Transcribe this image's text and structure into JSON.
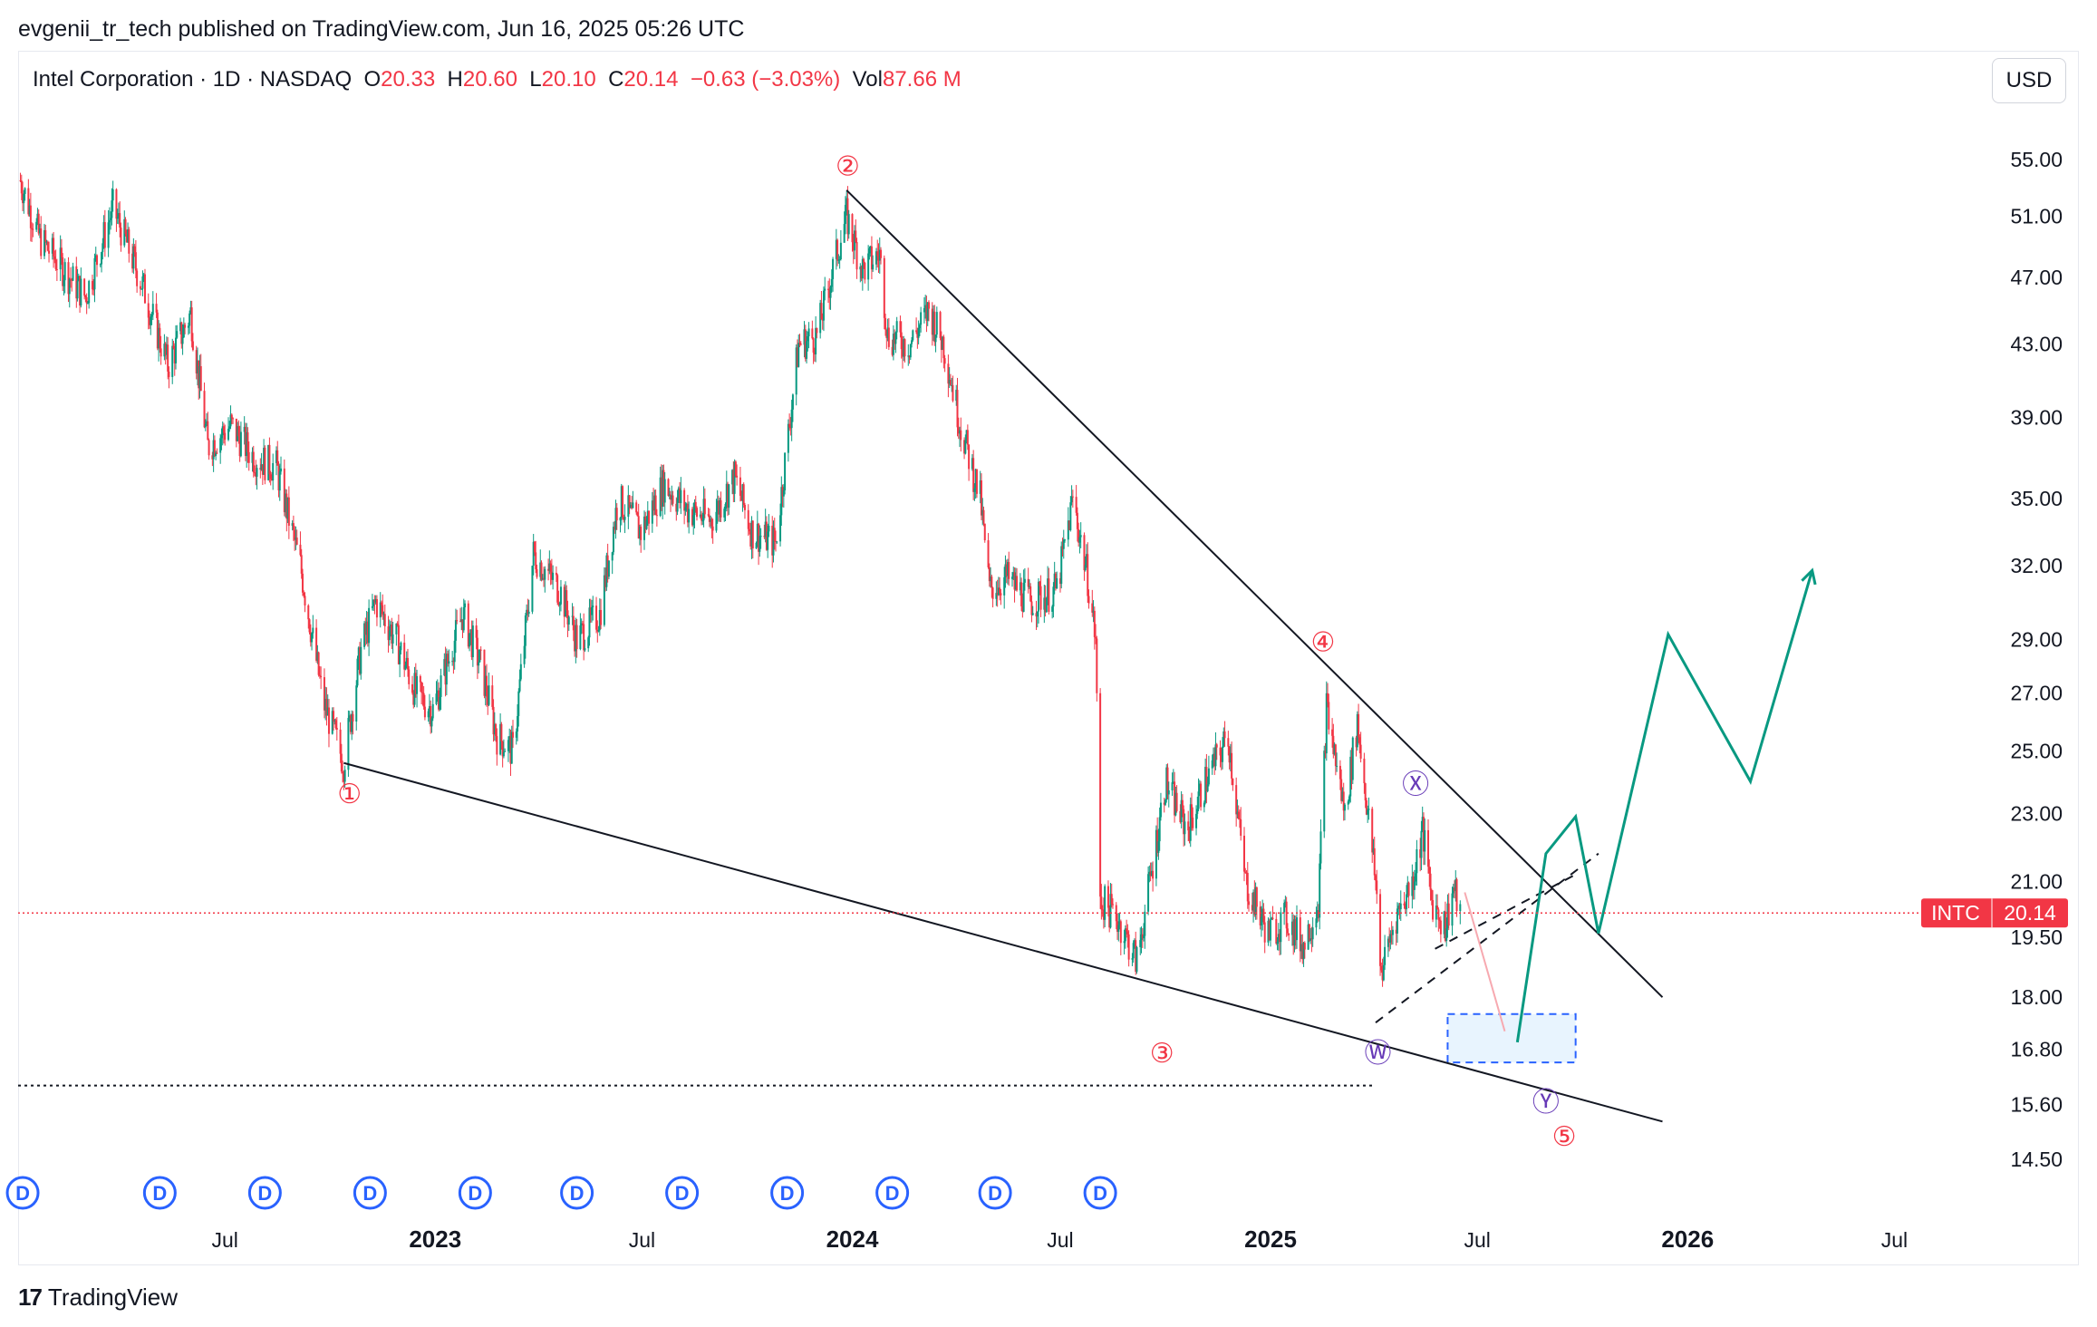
{
  "header": {
    "published_line": "evgenii_tr_tech published on TradingView.com, Jun 16, 2025 05:26 UTC"
  },
  "legend": {
    "symbol": "Intel Corporation · 1D · NASDAQ",
    "o_label": "O",
    "o_value": "20.33",
    "h_label": "H",
    "h_value": "20.60",
    "l_label": "L",
    "l_value": "20.10",
    "c_label": "C",
    "c_value": "20.14",
    "change": "−0.63 (−3.03%)",
    "vol_label": "Vol",
    "vol_value": "87.66 M"
  },
  "currency_button": "USD",
  "footer": {
    "brand": "TradingView"
  },
  "colors": {
    "up": "#089981",
    "down": "#f23645",
    "wave_label": "#f23645",
    "subwave_label": "#673ab7",
    "projection": "#089981",
    "dividend": "#2962ff",
    "price_line": "#f23645"
  },
  "chart_data": {
    "type": "candlestick",
    "symbol": "INTC",
    "interval": "1D",
    "y_scale": "log",
    "ylim": [
      13.8,
      58.5
    ],
    "xlim": [
      "2022-01-01",
      "2026-09-10"
    ],
    "y_ticks": [
      "55.00",
      "51.00",
      "47.00",
      "43.00",
      "39.00",
      "35.00",
      "32.00",
      "29.00",
      "27.00",
      "25.00",
      "23.00",
      "21.00",
      "19.50",
      "18.00",
      "16.80",
      "15.60",
      "14.50"
    ],
    "x_ticks": [
      {
        "date": "2022-07-01",
        "label": "Jul",
        "bold": false
      },
      {
        "date": "2023-01-01",
        "label": "2023",
        "bold": true
      },
      {
        "date": "2023-07-01",
        "label": "Jul",
        "bold": false
      },
      {
        "date": "2024-01-01",
        "label": "2024",
        "bold": true
      },
      {
        "date": "2024-07-01",
        "label": "Jul",
        "bold": false
      },
      {
        "date": "2025-01-01",
        "label": "2025",
        "bold": true
      },
      {
        "date": "2025-07-01",
        "label": "Jul",
        "bold": false
      },
      {
        "date": "2026-01-01",
        "label": "2026",
        "bold": true
      },
      {
        "date": "2026-07-01",
        "label": "Jul",
        "bold": false
      }
    ],
    "price_path": [
      [
        "2022-01-03",
        53.5
      ],
      [
        "2022-01-20",
        49.5
      ],
      [
        "2022-02-10",
        47.5
      ],
      [
        "2022-03-01",
        45.8
      ],
      [
        "2022-03-25",
        51.6
      ],
      [
        "2022-04-20",
        46.5
      ],
      [
        "2022-05-12",
        41.8
      ],
      [
        "2022-06-01",
        44.8
      ],
      [
        "2022-06-16",
        37.5
      ],
      [
        "2022-07-06",
        38.6
      ],
      [
        "2022-07-26",
        37.0
      ],
      [
        "2022-08-15",
        36.5
      ],
      [
        "2022-09-05",
        32.0
      ],
      [
        "2022-09-25",
        26.7
      ],
      [
        "2022-10-13",
        24.6
      ],
      [
        "2022-10-28",
        28.6
      ],
      [
        "2022-11-10",
        30.5
      ],
      [
        "2022-11-28",
        29.0
      ],
      [
        "2022-12-15",
        27.0
      ],
      [
        "2022-12-30",
        26.4
      ],
      [
        "2023-01-25",
        30.0
      ],
      [
        "2023-02-10",
        28.0
      ],
      [
        "2023-02-24",
        25.5
      ],
      [
        "2023-03-10",
        25.0
      ],
      [
        "2023-03-28",
        32.5
      ],
      [
        "2023-04-20",
        31.0
      ],
      [
        "2023-05-05",
        29.0
      ],
      [
        "2023-05-25",
        30.0
      ],
      [
        "2023-06-10",
        35.0
      ],
      [
        "2023-06-30",
        33.5
      ],
      [
        "2023-07-20",
        35.7
      ],
      [
        "2023-08-10",
        34.5
      ],
      [
        "2023-08-30",
        34.0
      ],
      [
        "2023-09-20",
        36.0
      ],
      [
        "2023-10-05",
        33.5
      ],
      [
        "2023-10-26",
        33.0
      ],
      [
        "2023-11-15",
        43.0
      ],
      [
        "2023-12-01",
        43.5
      ],
      [
        "2023-12-15",
        47.5
      ],
      [
        "2023-12-27",
        51.0
      ],
      [
        "2024-01-10",
        47.5
      ],
      [
        "2024-01-25",
        48.5
      ],
      [
        "2024-02-01",
        43.5
      ],
      [
        "2024-02-20",
        43.0
      ],
      [
        "2024-03-08",
        45.0
      ],
      [
        "2024-03-21",
        43.0
      ],
      [
        "2024-04-05",
        38.5
      ],
      [
        "2024-04-22",
        35.0
      ],
      [
        "2024-04-30",
        31.0
      ],
      [
        "2024-05-15",
        31.5
      ],
      [
        "2024-06-05",
        30.5
      ],
      [
        "2024-06-28",
        31.0
      ],
      [
        "2024-07-12",
        35.0
      ],
      [
        "2024-07-25",
        31.5
      ],
      [
        "2024-08-01",
        29.0
      ],
      [
        "2024-08-05",
        20.5
      ],
      [
        "2024-08-20",
        20.0
      ],
      [
        "2024-09-06",
        18.9
      ],
      [
        "2024-09-20",
        21.5
      ],
      [
        "2024-10-01",
        24.0
      ],
      [
        "2024-10-20",
        22.5
      ],
      [
        "2024-11-05",
        24.0
      ],
      [
        "2024-11-25",
        25.5
      ],
      [
        "2024-12-10",
        21.0
      ],
      [
        "2024-12-30",
        19.6
      ],
      [
        "2025-01-15",
        20.0
      ],
      [
        "2025-01-30",
        19.3
      ],
      [
        "2025-02-12",
        20.5
      ],
      [
        "2025-02-19",
        26.5
      ],
      [
        "2025-03-07",
        23.0
      ],
      [
        "2025-03-18",
        26.0
      ],
      [
        "2025-04-03",
        21.0
      ],
      [
        "2025-04-08",
        18.6
      ],
      [
        "2025-04-20",
        20.0
      ],
      [
        "2025-05-05",
        21.0
      ],
      [
        "2025-05-14",
        22.5
      ],
      [
        "2025-05-22",
        20.5
      ],
      [
        "2025-06-03",
        19.8
      ],
      [
        "2025-06-10",
        20.8
      ],
      [
        "2025-06-16",
        20.14
      ]
    ],
    "last_price": {
      "symbol": "INTC",
      "value": 20.14
    },
    "trendlines": [
      {
        "style": "solid",
        "from": [
          "2022-10-13",
          24.6
        ],
        "to": [
          "2025-12-10",
          15.25
        ]
      },
      {
        "style": "solid",
        "from": [
          "2023-12-27",
          52.8
        ],
        "to": [
          "2025-12-10",
          18.0
        ]
      },
      {
        "style": "dashed",
        "from": [
          "2025-04-03",
          17.4
        ],
        "to": [
          "2025-10-15",
          21.8
        ]
      },
      {
        "style": "dashed",
        "from": [
          "2025-05-25",
          19.2
        ],
        "to": [
          "2025-09-25",
          21.2
        ]
      }
    ],
    "support_level": 16.0,
    "target_box": {
      "from": [
        "2025-06-05",
        17.6
      ],
      "to": [
        "2025-09-25",
        16.5
      ]
    },
    "bearish_path": [
      [
        "2025-06-20",
        20.7
      ],
      [
        "2025-07-25",
        17.2
      ]
    ],
    "projection_path": [
      [
        "2025-08-05",
        16.95
      ],
      [
        "2025-08-30",
        21.8
      ],
      [
        "2025-09-25",
        22.9
      ],
      [
        "2025-10-15",
        19.6
      ],
      [
        "2025-12-15",
        29.2
      ],
      [
        "2026-02-25",
        24.0
      ],
      [
        "2026-04-20",
        31.8
      ]
    ],
    "wave_labels": [
      {
        "label": "1",
        "date": "2022-10-18",
        "price": 23.6,
        "type": "primary"
      },
      {
        "label": "2",
        "date": "2023-12-28",
        "price": 54.5,
        "type": "primary"
      },
      {
        "label": "3",
        "date": "2024-09-28",
        "price": 16.7,
        "type": "primary"
      },
      {
        "label": "4",
        "date": "2025-02-16",
        "price": 28.9,
        "type": "primary"
      },
      {
        "label": "5",
        "date": "2025-09-15",
        "price": 14.95,
        "type": "primary"
      },
      {
        "label": "W",
        "date": "2025-04-05",
        "price": 16.7,
        "type": "secondary"
      },
      {
        "label": "X",
        "date": "2025-05-08",
        "price": 23.9,
        "type": "secondary"
      },
      {
        "label": "Y",
        "date": "2025-08-30",
        "price": 15.65,
        "type": "secondary"
      }
    ],
    "dividend_markers": [
      "2022-01-05",
      "2022-05-05",
      "2022-08-05",
      "2022-11-05",
      "2023-02-05",
      "2023-05-05",
      "2023-08-05",
      "2023-11-05",
      "2024-02-05",
      "2024-05-05",
      "2024-08-05"
    ],
    "dividend_label": "D"
  }
}
